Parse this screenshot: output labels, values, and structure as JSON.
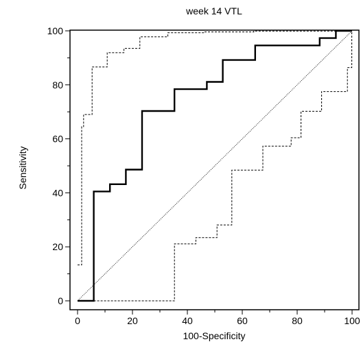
{
  "chart_data": {
    "type": "line",
    "title": "week 14 VTL",
    "xlabel": "100-Specificity",
    "ylabel": "Sensitivity",
    "xlim": [
      0,
      100
    ],
    "ylim": [
      0,
      100
    ],
    "x_ticks": [
      0,
      20,
      40,
      60,
      80,
      100
    ],
    "y_ticks": [
      0,
      20,
      40,
      60,
      80,
      100
    ],
    "grid": false,
    "series": [
      {
        "style": "solid",
        "points": [
          [
            0,
            0
          ],
          [
            5.9,
            0
          ],
          [
            5.9,
            40.5
          ],
          [
            11.8,
            40.5
          ],
          [
            11.8,
            43.2
          ],
          [
            17.6,
            43.2
          ],
          [
            17.6,
            48.6
          ],
          [
            23.5,
            48.6
          ],
          [
            23.5,
            70.3
          ],
          [
            35.3,
            70.3
          ],
          [
            35.3,
            78.4
          ],
          [
            47.1,
            78.4
          ],
          [
            47.1,
            81.1
          ],
          [
            52.9,
            81.1
          ],
          [
            52.9,
            89.2
          ],
          [
            64.7,
            89.2
          ],
          [
            64.7,
            94.6
          ],
          [
            88.2,
            94.6
          ],
          [
            88.2,
            97.3
          ],
          [
            94.1,
            97.3
          ],
          [
            94.1,
            100
          ],
          [
            100,
            100
          ]
        ]
      },
      {
        "style": "dashed",
        "points": [
          [
            0,
            13.3
          ],
          [
            1.5,
            13.3
          ],
          [
            1.5,
            64.5
          ],
          [
            2.2,
            64.5
          ],
          [
            2.2,
            69.0
          ],
          [
            5.3,
            69.0
          ],
          [
            5.3,
            86.6
          ],
          [
            10.8,
            86.6
          ],
          [
            10.8,
            91.9
          ],
          [
            16.9,
            91.9
          ],
          [
            16.9,
            93.5
          ],
          [
            22.7,
            93.5
          ],
          [
            22.7,
            97.8
          ],
          [
            32.9,
            97.8
          ],
          [
            32.9,
            99.3
          ],
          [
            46.1,
            99.3
          ],
          [
            46.1,
            99.6
          ],
          [
            64.2,
            99.6
          ],
          [
            64.2,
            99.9
          ],
          [
            95,
            99.9
          ],
          [
            99.5,
            99.9
          ]
        ]
      },
      {
        "style": "dashed",
        "points": [
          [
            5.9,
            0
          ],
          [
            35.3,
            0
          ],
          [
            35.3,
            21.1
          ],
          [
            43.1,
            21.1
          ],
          [
            43.1,
            23.4
          ],
          [
            50.8,
            23.4
          ],
          [
            50.8,
            28.1
          ],
          [
            56.2,
            28.1
          ],
          [
            56.2,
            48.4
          ],
          [
            67.5,
            48.4
          ],
          [
            67.5,
            57.3
          ],
          [
            77.8,
            57.3
          ],
          [
            77.8,
            60.4
          ],
          [
            81.4,
            60.4
          ],
          [
            81.4,
            70.2
          ],
          [
            88.9,
            70.2
          ],
          [
            88.9,
            77.5
          ],
          [
            98.3,
            77.5
          ],
          [
            98.3,
            86.4
          ],
          [
            99.9,
            86.4
          ],
          [
            99.9,
            99.9
          ]
        ]
      },
      {
        "style": "dotted",
        "points": [
          [
            0,
            0
          ],
          [
            100,
            100
          ]
        ]
      }
    ]
  }
}
